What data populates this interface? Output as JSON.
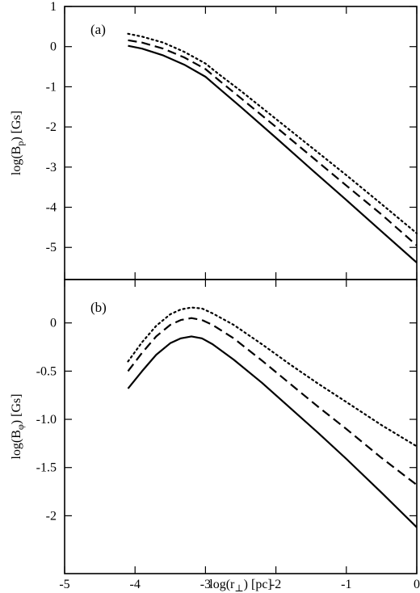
{
  "chart_data": [
    {
      "type": "line",
      "panel_label": "(a)",
      "ylabel": "log(B",
      "ylabel_sub": "p",
      "ylabel_tail": ") [Gs]",
      "xlim": [
        -5,
        0
      ],
      "ylim": [
        -5.8,
        1
      ],
      "yticks": [
        1,
        0,
        -1,
        -2,
        -3,
        -4,
        -5
      ],
      "ytick_labels": [
        "1",
        "0",
        "-1",
        "-2",
        "-3",
        "-4",
        "-5"
      ],
      "series": [
        {
          "style": "solid",
          "x": [
            -4.1,
            -3.9,
            -3.6,
            -3.3,
            -3.0,
            -2.8,
            -2.5,
            -2.0,
            -1.5,
            -1.0,
            -0.5,
            0.0
          ],
          "y": [
            0.02,
            -0.05,
            -0.22,
            -0.45,
            -0.75,
            -1.05,
            -1.5,
            -2.27,
            -3.05,
            -3.82,
            -4.6,
            -5.38
          ]
        },
        {
          "style": "dashed",
          "x": [
            -4.1,
            -3.9,
            -3.6,
            -3.3,
            -3.0,
            -2.8,
            -2.5,
            -2.0,
            -1.5,
            -1.0,
            -0.5,
            0.0
          ],
          "y": [
            0.16,
            0.1,
            -0.05,
            -0.27,
            -0.56,
            -0.85,
            -1.28,
            -2.0,
            -2.73,
            -3.46,
            -4.18,
            -4.95
          ]
        },
        {
          "style": "dotted",
          "x": [
            -4.1,
            -3.9,
            -3.6,
            -3.3,
            -3.0,
            -2.8,
            -2.5,
            -2.0,
            -1.5,
            -1.0,
            -0.5,
            0.0
          ],
          "y": [
            0.32,
            0.25,
            0.1,
            -0.13,
            -0.42,
            -0.7,
            -1.1,
            -1.8,
            -2.5,
            -3.2,
            -3.92,
            -4.65
          ]
        }
      ]
    },
    {
      "type": "line",
      "panel_label": "(b)",
      "ylabel": "log(B",
      "ylabel_sub": "φ",
      "ylabel_tail": ") [Gs]",
      "xlabel": "log(r",
      "xlabel_sub": "⊥",
      "xlabel_tail": ") [pc]",
      "xlim": [
        -5,
        0
      ],
      "ylim": [
        -2.6,
        0.45
      ],
      "yticks": [
        0,
        -0.5,
        -1.0,
        -1.5,
        -2
      ],
      "ytick_labels": [
        "0",
        "-0.5",
        "-1.0",
        "-1.5",
        "-2"
      ],
      "xticks": [
        -5,
        -4,
        -3,
        -2,
        -1,
        0
      ],
      "xtick_labels": [
        "-5",
        "-4",
        "-3",
        "-2",
        "-1",
        "0"
      ],
      "series": [
        {
          "style": "solid",
          "x": [
            -4.1,
            -3.9,
            -3.7,
            -3.5,
            -3.35,
            -3.2,
            -3.05,
            -2.9,
            -2.6,
            -2.2,
            -1.8,
            -1.4,
            -1.0,
            -0.5,
            0.0
          ],
          "y": [
            -0.68,
            -0.5,
            -0.33,
            -0.21,
            -0.16,
            -0.14,
            -0.16,
            -0.22,
            -0.38,
            -0.62,
            -0.88,
            -1.14,
            -1.41,
            -1.76,
            -2.12
          ]
        },
        {
          "style": "dashed",
          "x": [
            -4.1,
            -3.9,
            -3.7,
            -3.5,
            -3.35,
            -3.2,
            -3.05,
            -2.9,
            -2.6,
            -2.2,
            -1.8,
            -1.4,
            -1.0,
            -0.5,
            0.0
          ],
          "y": [
            -0.5,
            -0.31,
            -0.14,
            -0.02,
            0.03,
            0.05,
            0.03,
            -0.02,
            -0.16,
            -0.39,
            -0.63,
            -0.87,
            -1.1,
            -1.4,
            -1.68
          ]
        },
        {
          "style": "dotted",
          "x": [
            -4.1,
            -3.9,
            -3.7,
            -3.5,
            -3.35,
            -3.2,
            -3.05,
            -2.9,
            -2.6,
            -2.2,
            -1.8,
            -1.4,
            -1.0,
            -0.5,
            0.0
          ],
          "y": [
            -0.4,
            -0.2,
            -0.03,
            0.09,
            0.14,
            0.16,
            0.15,
            0.1,
            -0.02,
            -0.22,
            -0.43,
            -0.63,
            -0.82,
            -1.06,
            -1.28
          ]
        }
      ]
    }
  ]
}
